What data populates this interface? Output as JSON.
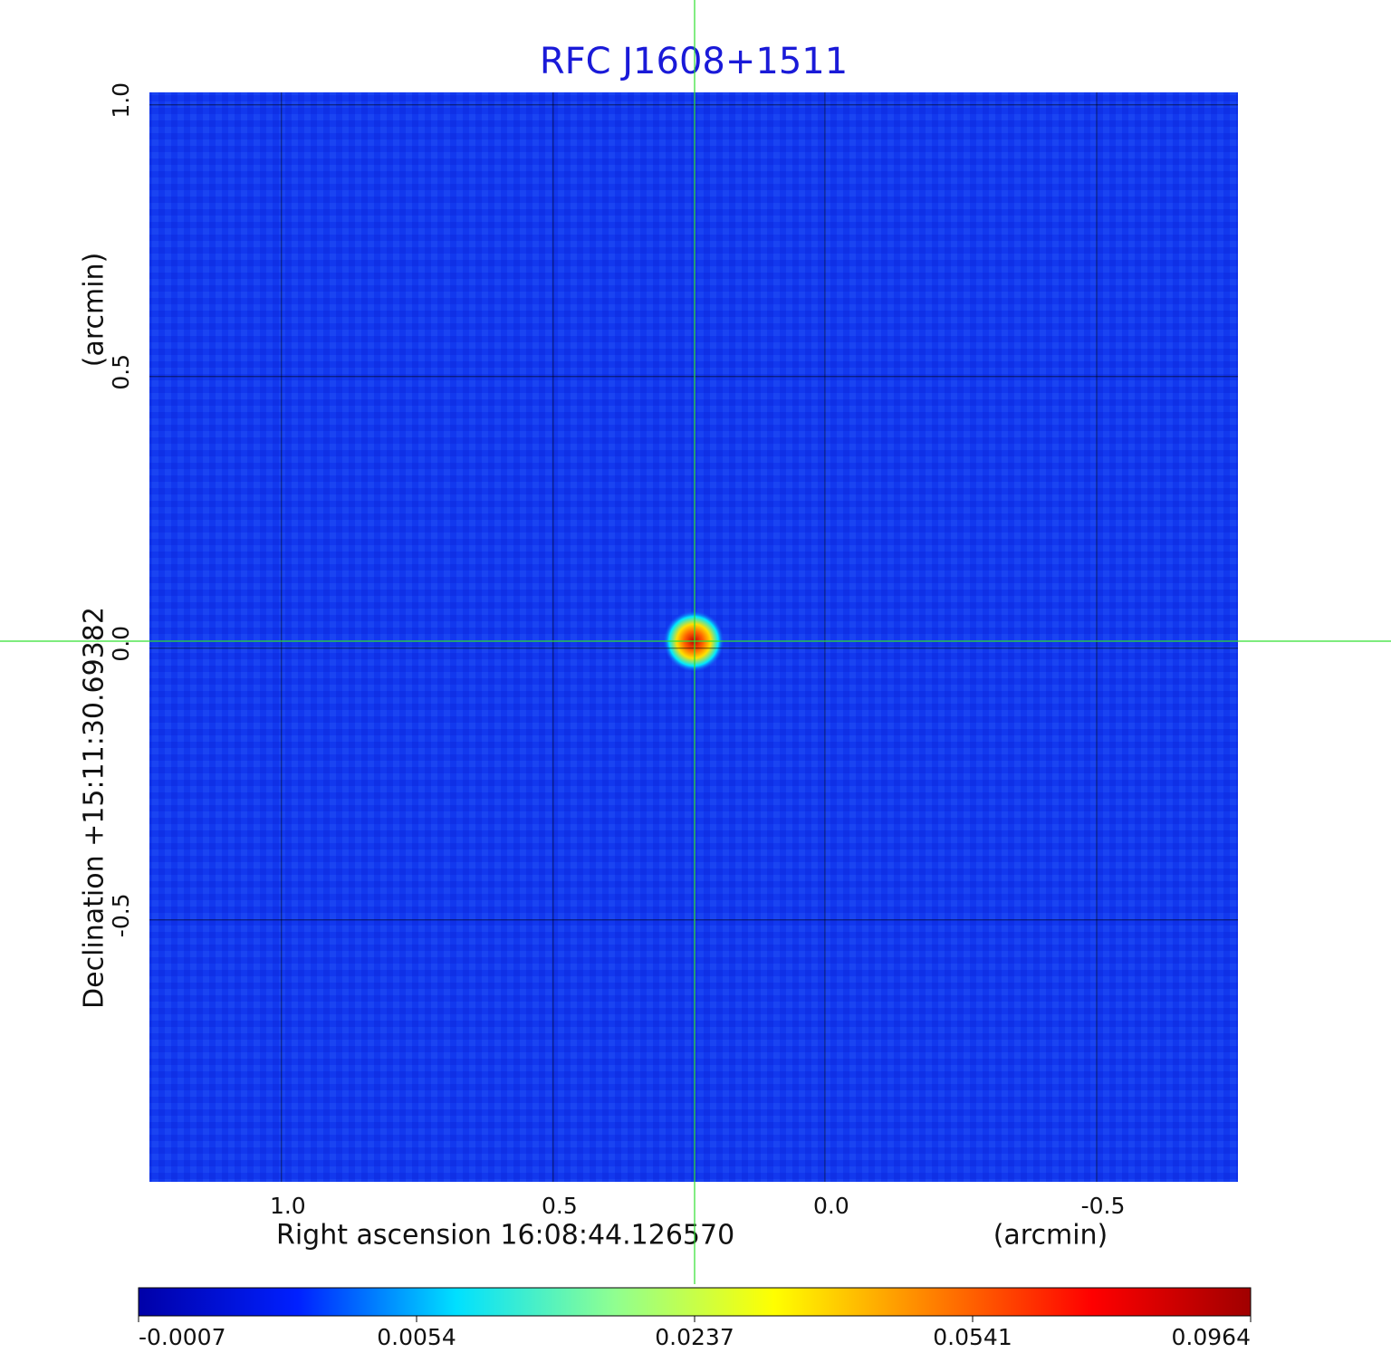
{
  "chart_data": {
    "type": "image",
    "title": "RFC J1608+1511",
    "x_label": "Right ascension  16:08:44.126570",
    "x_unit": "(arcmin)",
    "y_label": "Declination  +15:11:30.69382",
    "y_unit": "(arcmin)",
    "xlim": [
      1.243,
      -0.76
    ],
    "ylim": [
      -0.982,
      1.023
    ],
    "xticks": [
      {
        "value": 1,
        "label": "1.0"
      },
      {
        "value": 0.5,
        "label": "0.5"
      },
      {
        "value": 0,
        "label": "0.0"
      },
      {
        "value": -0.5,
        "label": "-0.5"
      }
    ],
    "yticks": [
      {
        "value": 1,
        "label": "1.0"
      },
      {
        "value": 0.5,
        "label": "0.5"
      },
      {
        "value": 0,
        "label": "0.0"
      },
      {
        "value": -0.5,
        "label": "-0.5"
      }
    ],
    "grid": true,
    "colorbar_ticks": [
      -0.0007,
      0.0054,
      0.0237,
      0.0541,
      0.0964
    ],
    "colorbar_colors": [
      "#0000a8",
      "#0020ff",
      "#00e0ff",
      "#90ff90",
      "#ffff00",
      "#ff8000",
      "#ff0000",
      "#a00000"
    ]
  }
}
